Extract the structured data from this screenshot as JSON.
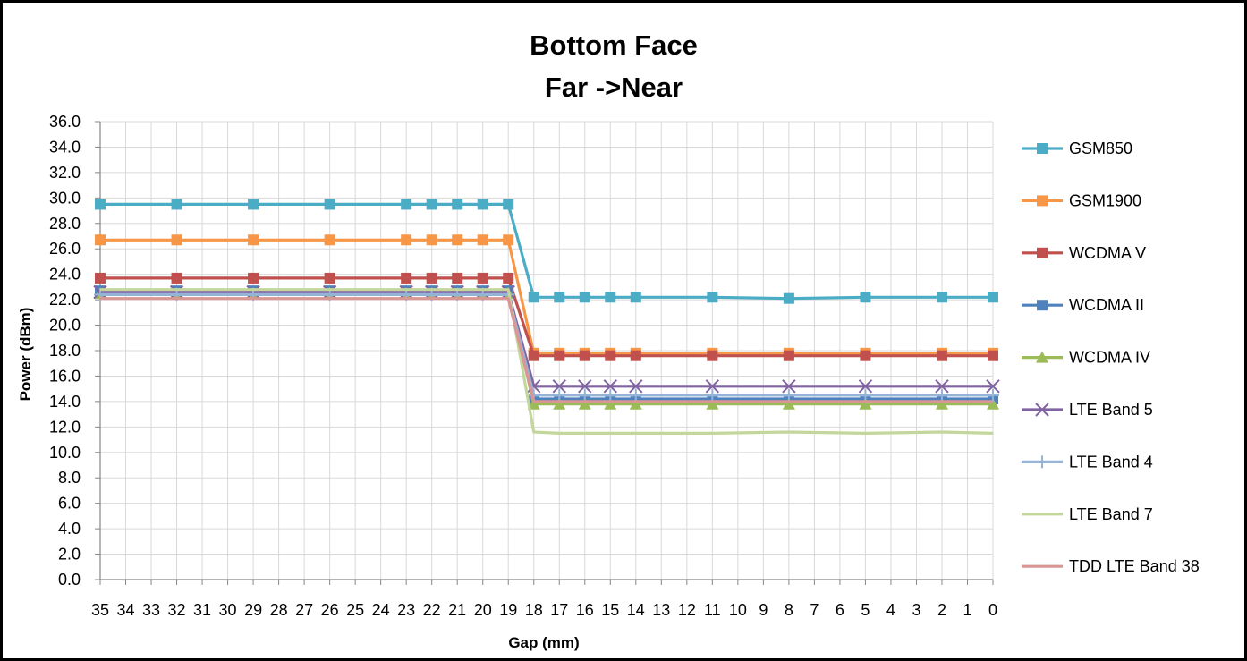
{
  "chart_data": {
    "type": "line",
    "title": [
      "Bottom Face",
      "Far ->Near"
    ],
    "xlabel": "Gap (mm)",
    "ylabel": "Power (dBm)",
    "x_ticks": [
      35,
      34,
      33,
      32,
      31,
      30,
      29,
      28,
      27,
      26,
      25,
      24,
      23,
      22,
      21,
      20,
      19,
      18,
      17,
      16,
      15,
      14,
      13,
      12,
      11,
      10,
      9,
      8,
      7,
      6,
      5,
      4,
      3,
      2,
      1,
      0
    ],
    "y_ticks": [
      "0.0",
      "2.0",
      "4.0",
      "6.0",
      "8.0",
      "10.0",
      "12.0",
      "14.0",
      "16.0",
      "18.0",
      "20.0",
      "22.0",
      "24.0",
      "26.0",
      "28.0",
      "30.0",
      "32.0",
      "34.0",
      "36.0"
    ],
    "xlim": [
      35,
      0
    ],
    "ylim": [
      0,
      36
    ],
    "grid": true,
    "legend_position": "right",
    "x": [
      35,
      32,
      29,
      26,
      23,
      22,
      21,
      20,
      19,
      18,
      17,
      16,
      15,
      14,
      11,
      8,
      5,
      2,
      0
    ],
    "series": [
      {
        "name": "GSM850",
        "color": "#4bacc6",
        "marker": "square",
        "values": [
          29.5,
          29.5,
          29.5,
          29.5,
          29.5,
          29.5,
          29.5,
          29.5,
          29.5,
          22.2,
          22.2,
          22.2,
          22.2,
          22.2,
          22.2,
          22.1,
          22.2,
          22.2,
          22.2
        ]
      },
      {
        "name": "GSM1900",
        "color": "#f79646",
        "marker": "square",
        "values": [
          26.7,
          26.7,
          26.7,
          26.7,
          26.7,
          26.7,
          26.7,
          26.7,
          26.7,
          17.8,
          17.8,
          17.8,
          17.8,
          17.8,
          17.8,
          17.8,
          17.8,
          17.8,
          17.8
        ]
      },
      {
        "name": "WCDMA V",
        "color": "#c0504d",
        "marker": "square",
        "values": [
          23.7,
          23.7,
          23.7,
          23.7,
          23.7,
          23.7,
          23.7,
          23.7,
          23.7,
          17.6,
          17.6,
          17.6,
          17.6,
          17.6,
          17.6,
          17.6,
          17.6,
          17.6,
          17.6
        ]
      },
      {
        "name": "WCDMA II",
        "color": "#4f81bd",
        "marker": "square",
        "values": [
          22.7,
          22.7,
          22.7,
          22.7,
          22.7,
          22.7,
          22.7,
          22.7,
          22.7,
          14.2,
          14.2,
          14.2,
          14.2,
          14.2,
          14.2,
          14.2,
          14.2,
          14.2,
          14.2
        ]
      },
      {
        "name": "WCDMA IV",
        "color": "#9bbb59",
        "marker": "triangle",
        "values": [
          22.5,
          22.5,
          22.5,
          22.5,
          22.5,
          22.5,
          22.5,
          22.5,
          22.5,
          13.8,
          13.8,
          13.8,
          13.8,
          13.8,
          13.8,
          13.8,
          13.8,
          13.8,
          13.8
        ]
      },
      {
        "name": "LTE Band 5",
        "color": "#8064a2",
        "marker": "x",
        "values": [
          22.6,
          22.6,
          22.6,
          22.6,
          22.6,
          22.6,
          22.6,
          22.6,
          22.6,
          15.2,
          15.2,
          15.2,
          15.2,
          15.2,
          15.2,
          15.2,
          15.2,
          15.2,
          15.2
        ]
      },
      {
        "name": "LTE Band 4",
        "color": "#95b3d7",
        "marker": "plus",
        "values": [
          22.4,
          22.4,
          22.4,
          22.4,
          22.4,
          22.4,
          22.4,
          22.4,
          22.4,
          14.5,
          14.5,
          14.5,
          14.5,
          14.5,
          14.5,
          14.5,
          14.5,
          14.5,
          14.5
        ]
      },
      {
        "name": "LTE Band 7",
        "color": "#c3d69b",
        "marker": "none",
        "values": [
          22.8,
          22.8,
          22.8,
          22.8,
          22.8,
          22.8,
          22.8,
          22.8,
          22.8,
          11.6,
          11.5,
          11.5,
          11.5,
          11.5,
          11.5,
          11.6,
          11.5,
          11.6,
          11.5
        ]
      },
      {
        "name": "TDD LTE Band 38",
        "color": "#d99694",
        "marker": "none",
        "values": [
          22.1,
          22.1,
          22.1,
          22.1,
          22.1,
          22.1,
          22.1,
          22.1,
          22.1,
          14.0,
          14.0,
          14.0,
          14.0,
          14.0,
          14.0,
          14.0,
          14.0,
          14.0,
          14.0
        ]
      }
    ]
  }
}
